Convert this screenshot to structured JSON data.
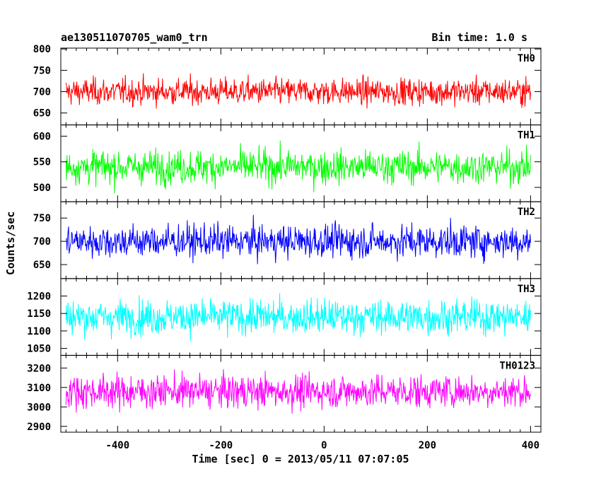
{
  "header": {
    "title": "ae130511070705_wam0_trn",
    "bin_time": "Bin time: 1.0 s"
  },
  "chart_data": {
    "type": "line",
    "xlabel": "Time [sec] 0 = 2013/05/11 07:07:05",
    "ylabel": "Counts/sec",
    "xlim": [
      -510,
      420
    ],
    "xticks": [
      -400,
      -200,
      0,
      200,
      400
    ],
    "x_start": -500,
    "x_end": 400,
    "bin_time_s": 1.0,
    "panels": [
      {
        "name": "TH0",
        "color": "#ff0000",
        "ylim": [
          622,
          802
        ],
        "yticks": [
          650,
          700,
          750,
          800
        ],
        "mean": 700,
        "spread": 22
      },
      {
        "name": "TH1",
        "color": "#00ff00",
        "ylim": [
          472,
          622
        ],
        "yticks": [
          500,
          550,
          600
        ],
        "mean": 540,
        "spread": 23
      },
      {
        "name": "TH2",
        "color": "#0000ff",
        "ylim": [
          620,
          785
        ],
        "yticks": [
          650,
          700,
          750
        ],
        "mean": 700,
        "spread": 25
      },
      {
        "name": "TH3",
        "color": "#00ffff",
        "ylim": [
          1030,
          1250
        ],
        "yticks": [
          1050,
          1100,
          1150,
          1200
        ],
        "mean": 1140,
        "spread": 35
      },
      {
        "name": "TH0123",
        "color": "#ff00ff",
        "ylim": [
          2870,
          3265
        ],
        "yticks": [
          2900,
          3000,
          3100,
          3200
        ],
        "mean": 3080,
        "spread": 60
      }
    ]
  }
}
